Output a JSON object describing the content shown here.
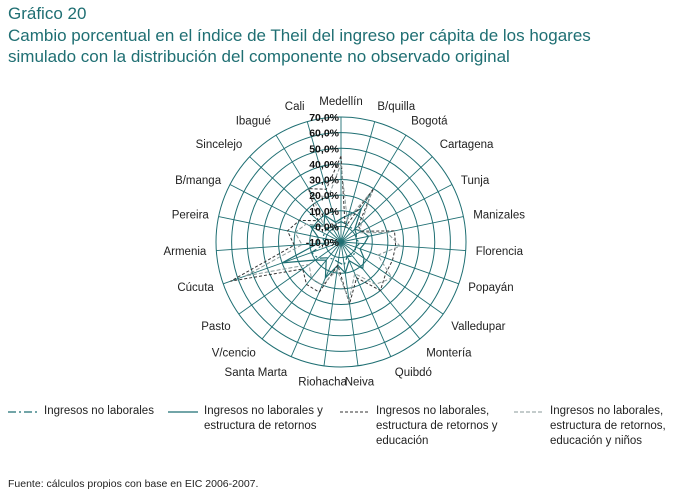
{
  "figure": {
    "label": "Gráfico 20",
    "title": "Cambio porcentual en el índice de Theil del ingreso per cápita de los hogares simulado con la distribución del componente no observado original"
  },
  "source": "Fuente: cálculos propios con base en EIC 2006-2007.",
  "colors": {
    "teal": "#1f6f73",
    "dark": "#333333",
    "gray": "#8a9a9a"
  },
  "chart_data": {
    "type": "radar",
    "categories": [
      "Medellín",
      "B/quilla",
      "Bogotá",
      "Cartagena",
      "Tunja",
      "Manizales",
      "Florencia",
      "Popayán",
      "Valledupar",
      "Montería",
      "Quibdó",
      "Neiva",
      "Riohacha",
      "Santa Marta",
      "V/cencio",
      "Pasto",
      "Cúcuta",
      "Armenia",
      "Pereira",
      "B/manga",
      "Sincelejo",
      "Ibagué",
      "Cali"
    ],
    "rlim": [
      -10,
      70
    ],
    "ticks": [
      "-10,0%",
      "0,0%",
      "10,0%",
      "20,0%",
      "30,0%",
      "40,0%",
      "50,0%",
      "60,0%",
      "70,0%"
    ],
    "grid": true,
    "legend_position": "bottom",
    "series": [
      {
        "name": "Ingresos no laborales",
        "values": [
          3,
          2,
          1,
          2,
          1,
          0,
          2,
          0,
          1,
          2,
          0,
          5,
          3,
          2,
          3,
          8,
          10,
          0,
          2,
          2,
          3,
          1,
          2
        ]
      },
      {
        "name": "Ingresos no laborales y estructura de retornos",
        "values": [
          5,
          8,
          15,
          2,
          5,
          8,
          5,
          3,
          8,
          12,
          3,
          10,
          5,
          15,
          5,
          10,
          30,
          5,
          5,
          12,
          5,
          10,
          3
        ]
      },
      {
        "name": "Ingresos no laborales, estructura de retornos y educación",
        "values": [
          45,
          0,
          30,
          5,
          5,
          25,
          25,
          25,
          25,
          30,
          15,
          30,
          5,
          25,
          25,
          20,
          65,
          20,
          25,
          20,
          10,
          30,
          25
        ]
      },
      {
        "name": "Ingresos no laborales, estructura de retornos, educación y niños",
        "values": [
          40,
          5,
          28,
          8,
          3,
          20,
          28,
          15,
          30,
          25,
          12,
          28,
          8,
          20,
          20,
          15,
          55,
          15,
          20,
          15,
          5,
          25,
          20
        ]
      }
    ]
  }
}
